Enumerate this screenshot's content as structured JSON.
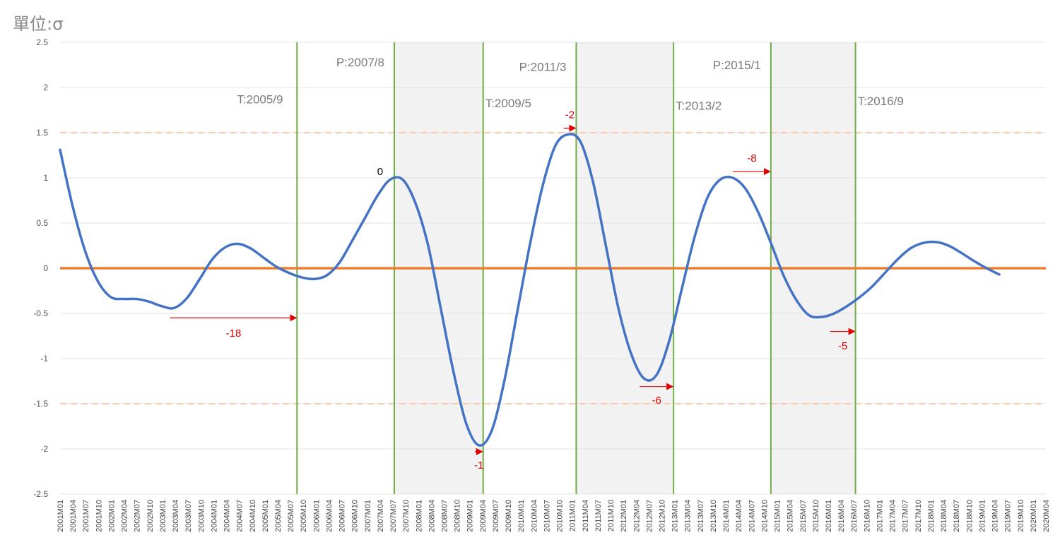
{
  "unit_label": "單位:σ",
  "colors": {
    "series": "#4472C4",
    "zero_line": "#ED7D31",
    "threshold": "#F8CBAD",
    "turning_point": "#70AD47",
    "shade": "#F2F2F2",
    "lead": "#E00000",
    "grid": "#E3E3E3"
  },
  "chart_data": {
    "type": "line",
    "title": "",
    "xlabel": "",
    "ylabel": "",
    "ylim": [
      -2.5,
      2.5
    ],
    "yticks": [
      "2.5",
      "2",
      "1.5",
      "1",
      "0.5",
      "0",
      "-0.5",
      "-1",
      "-1.5",
      "-2",
      "-2.5"
    ],
    "grid": true,
    "thresholds": [
      1.5,
      -1.5
    ],
    "xticks": [
      "2001M01",
      "2001M04",
      "2001M07",
      "2001M10",
      "2002M01",
      "2002M04",
      "2002M07",
      "2002M10",
      "2003M01",
      "2003M04",
      "2003M07",
      "2003M10",
      "2004M01",
      "2004M04",
      "2004M07",
      "2004M10",
      "2005M01",
      "2005M04",
      "2005M07",
      "2005M10",
      "2006M01",
      "2006M04",
      "2006M07",
      "2006M10",
      "2007M01",
      "2007M04",
      "2007M07",
      "2007M10",
      "2008M01",
      "2008M04",
      "2008M07",
      "2008M10",
      "2009M01",
      "2009M04",
      "2009M07",
      "2009M10",
      "2010M01",
      "2010M04",
      "2010M07",
      "2010M10",
      "2011M01",
      "2011M04",
      "2011M07",
      "2011M10",
      "2012M01",
      "2012M04",
      "2012M07",
      "2012M10",
      "2013M01",
      "2013M04",
      "2013M07",
      "2013M10",
      "2014M01",
      "2014M04",
      "2014M07",
      "2014M10",
      "2015M01",
      "2015M04",
      "2015M07",
      "2015M10",
      "2016M01",
      "2016M04",
      "2016M07",
      "2016M10",
      "2017M01",
      "2017M04",
      "2017M07",
      "2017M10",
      "2018M01",
      "2018M04",
      "2018M07",
      "2018M10",
      "2019M01",
      "2019M04",
      "2019M07",
      "2019M10",
      "2020M01",
      "2020M04"
    ],
    "series": [
      {
        "values_by_date": [
          [
            "2001-01",
            1.31
          ],
          [
            "2001-04",
            0.68
          ],
          [
            "2001-07",
            0.18
          ],
          [
            "2001-10",
            -0.15
          ],
          [
            "2002-01",
            -0.32
          ],
          [
            "2002-04",
            -0.34
          ],
          [
            "2002-07",
            -0.34
          ],
          [
            "2002-10",
            -0.37
          ],
          [
            "2003-01",
            -0.42
          ],
          [
            "2003-04",
            -0.44
          ],
          [
            "2003-07",
            -0.33
          ],
          [
            "2003-10",
            -0.12
          ],
          [
            "2004-01",
            0.1
          ],
          [
            "2004-04",
            0.23
          ],
          [
            "2004-07",
            0.27
          ],
          [
            "2004-10",
            0.22
          ],
          [
            "2005-01",
            0.12
          ],
          [
            "2005-04",
            0.02
          ],
          [
            "2005-07",
            -0.05
          ],
          [
            "2005-10",
            -0.1
          ],
          [
            "2006-01",
            -0.12
          ],
          [
            "2006-04",
            -0.08
          ],
          [
            "2006-07",
            0.06
          ],
          [
            "2006-10",
            0.3
          ],
          [
            "2007-01",
            0.55
          ],
          [
            "2007-04",
            0.8
          ],
          [
            "2007-07",
            0.98
          ],
          [
            "2007-10",
            0.98
          ],
          [
            "2008-01",
            0.72
          ],
          [
            "2008-04",
            0.25
          ],
          [
            "2008-07",
            -0.45
          ],
          [
            "2008-10",
            -1.15
          ],
          [
            "2009-01",
            -1.72
          ],
          [
            "2009-04",
            -1.96
          ],
          [
            "2009-07",
            -1.8
          ],
          [
            "2009-10",
            -1.25
          ],
          [
            "2010-01",
            -0.5
          ],
          [
            "2010-04",
            0.25
          ],
          [
            "2010-07",
            0.9
          ],
          [
            "2010-10",
            1.35
          ],
          [
            "2011-01",
            1.48
          ],
          [
            "2011-04",
            1.4
          ],
          [
            "2011-07",
            0.95
          ],
          [
            "2011-10",
            0.25
          ],
          [
            "2012-01",
            -0.45
          ],
          [
            "2012-04",
            -0.95
          ],
          [
            "2012-07",
            -1.22
          ],
          [
            "2012-10",
            -1.18
          ],
          [
            "2013-01",
            -0.8
          ],
          [
            "2013-04",
            -0.22
          ],
          [
            "2013-07",
            0.35
          ],
          [
            "2013-10",
            0.78
          ],
          [
            "2014-01",
            0.98
          ],
          [
            "2014-04",
            1.0
          ],
          [
            "2014-07",
            0.88
          ],
          [
            "2014-10",
            0.62
          ],
          [
            "2015-01",
            0.28
          ],
          [
            "2015-04",
            -0.08
          ],
          [
            "2015-07",
            -0.35
          ],
          [
            "2015-10",
            -0.52
          ],
          [
            "2016-01",
            -0.54
          ],
          [
            "2016-04",
            -0.5
          ],
          [
            "2016-07",
            -0.42
          ],
          [
            "2016-10",
            -0.32
          ],
          [
            "2017-01",
            -0.2
          ],
          [
            "2017-04",
            -0.05
          ],
          [
            "2017-07",
            0.1
          ],
          [
            "2017-10",
            0.22
          ],
          [
            "2018-01",
            0.28
          ],
          [
            "2018-04",
            0.29
          ],
          [
            "2018-07",
            0.25
          ],
          [
            "2018-10",
            0.17
          ],
          [
            "2019-01",
            0.08
          ],
          [
            "2019-04",
            0.0
          ],
          [
            "2019-07",
            -0.07
          ]
        ]
      }
    ],
    "shaded_periods": [
      {
        "from": "2007-08",
        "to": "2009-05"
      },
      {
        "from": "2011-03",
        "to": "2013-02"
      },
      {
        "from": "2015-01",
        "to": "2016-09"
      }
    ],
    "turning_points": [
      {
        "date": "2005-09",
        "label": "T:2005/9",
        "label_y": 1.87
      },
      {
        "date": "2007-08",
        "label": "P:2007/8",
        "label_y": 2.28
      },
      {
        "date": "2009-05",
        "label": "T:2009/5",
        "label_y": 1.83
      },
      {
        "date": "2011-03",
        "label": "P:2011/3",
        "label_y": 2.23
      },
      {
        "date": "2013-02",
        "label": "T:2013/2",
        "label_y": 1.8
      },
      {
        "date": "2015-01",
        "label": "P:2015/1",
        "label_y": 2.25
      },
      {
        "date": "2016-09",
        "label": "T:2016/9",
        "label_y": 1.85
      }
    ],
    "leads": [
      {
        "label": "-18",
        "from": "2003-03",
        "to": "2005-09",
        "y": -0.55,
        "label_y": -0.72
      },
      {
        "label": "0",
        "date": "2007-08",
        "y": 1.07
      },
      {
        "label": "-1",
        "from": "2009-03",
        "to": "2009-05",
        "y": -2.03,
        "label_y": -2.18
      },
      {
        "label": "-2",
        "from": "2010-12",
        "to": "2011-03",
        "y": 1.55,
        "label_y": 1.7
      },
      {
        "label": "-6",
        "from": "2012-06",
        "to": "2013-02",
        "y": -1.31,
        "label_y": -1.46
      },
      {
        "label": "-8",
        "from": "2014-04",
        "to": "2015-01",
        "y": 1.07,
        "label_y": 1.22
      },
      {
        "label": "-5",
        "from": "2016-03",
        "to": "2016-09",
        "y": -0.7,
        "label_y": -0.86
      }
    ]
  }
}
